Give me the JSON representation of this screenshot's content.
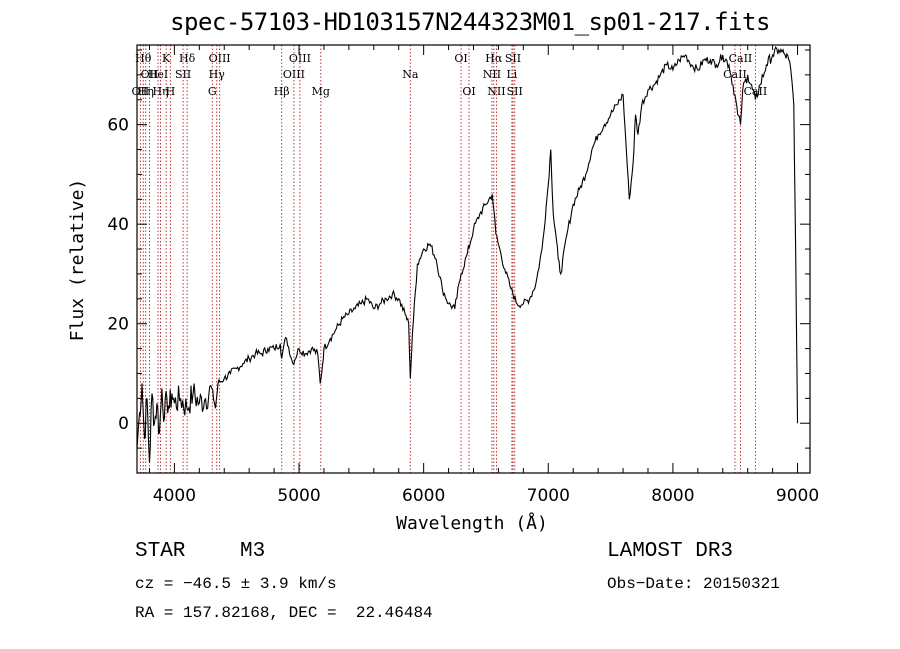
{
  "chart_data": {
    "type": "line",
    "title": "spec-57103-HD103157N244323M01_sp01-217.fits",
    "xlabel": "Wavelength (Å)",
    "ylabel": "Flux (relative)",
    "xlim": [
      3700,
      9100
    ],
    "ylim": [
      -10,
      76
    ],
    "xticks": [
      4000,
      5000,
      6000,
      7000,
      8000,
      9000
    ],
    "yticks": [
      0,
      20,
      40,
      60
    ],
    "series": [
      {
        "name": "flux",
        "x": [
          3700,
          3720,
          3740,
          3760,
          3780,
          3800,
          3820,
          3840,
          3860,
          3880,
          3900,
          3920,
          3940,
          3960,
          3980,
          4000,
          4050,
          4100,
          4150,
          4200,
          4250,
          4300,
          4330,
          4350,
          4400,
          4450,
          4500,
          4550,
          4600,
          4650,
          4700,
          4750,
          4800,
          4850,
          4861,
          4880,
          4900,
          4950,
          5000,
          5050,
          5100,
          5150,
          5170,
          5190,
          5200,
          5250,
          5300,
          5350,
          5400,
          5450,
          5500,
          5550,
          5600,
          5650,
          5700,
          5750,
          5800,
          5850,
          5880,
          5893,
          5910,
          5950,
          6000,
          6050,
          6100,
          6150,
          6200,
          6250,
          6300,
          6350,
          6400,
          6450,
          6500,
          6550,
          6563,
          6580,
          6600,
          6650,
          6700,
          6750,
          6800,
          6850,
          6900,
          6950,
          7000,
          7020,
          7040,
          7060,
          7080,
          7100,
          7150,
          7200,
          7250,
          7300,
          7350,
          7400,
          7450,
          7500,
          7550,
          7600,
          7650,
          7680,
          7700,
          7720,
          7750,
          7800,
          7850,
          7900,
          7950,
          8000,
          8050,
          8100,
          8150,
          8200,
          8250,
          8300,
          8350,
          8400,
          8450,
          8498,
          8520,
          8542,
          8560,
          8600,
          8662,
          8700,
          8750,
          8800,
          8850,
          8900,
          8930,
          8950,
          8970,
          8980,
          8990,
          9000
        ],
        "y": [
          -5,
          2,
          8,
          -3,
          5,
          -8,
          6,
          0,
          4,
          -2,
          7,
          1,
          5,
          3,
          6,
          4,
          5,
          3,
          6,
          4,
          5,
          7,
          3,
          8,
          9,
          10,
          11,
          12,
          13,
          14,
          14,
          15,
          15,
          16,
          13,
          16,
          17,
          12,
          15,
          14,
          15,
          14,
          8,
          12,
          15,
          17,
          19,
          21,
          22,
          23,
          24,
          25,
          23,
          24,
          25,
          26,
          25,
          22,
          20,
          9,
          18,
          32,
          35,
          36,
          33,
          27,
          24,
          23,
          30,
          34,
          39,
          42,
          44,
          46,
          43,
          38,
          36,
          31,
          27,
          24,
          24,
          25,
          28,
          35,
          48,
          55,
          42,
          38,
          33,
          30,
          38,
          44,
          47,
          50,
          55,
          58,
          60,
          62,
          64,
          66,
          45,
          52,
          62,
          58,
          64,
          67,
          68,
          70,
          72,
          71,
          73,
          74,
          72,
          71,
          73,
          73,
          72,
          74,
          72,
          66,
          62,
          60,
          67,
          70,
          65,
          68,
          72,
          74,
          75,
          74,
          73,
          70,
          64,
          45,
          22,
          0
        ]
      }
    ],
    "lines": [
      {
        "wave": 3727,
        "label": "OII",
        "row": 3
      },
      {
        "wave": 3750,
        "label": "Hθ",
        "row": 1
      },
      {
        "wave": 3770,
        "label": "Hη",
        "row": 3
      },
      {
        "wave": 3800,
        "label": "OII",
        "row": 2
      },
      {
        "wave": 3869,
        "label": "HeI",
        "row": 2
      },
      {
        "wave": 3889,
        "label": "Hη",
        "row": 3
      },
      {
        "wave": 3934,
        "label": "K",
        "row": 1
      },
      {
        "wave": 3968,
        "label": "H",
        "row": 3
      },
      {
        "wave": 4070,
        "label": "SII",
        "row": 2
      },
      {
        "wave": 4102,
        "label": "Hδ",
        "row": 1
      },
      {
        "wave": 4304,
        "label": "G",
        "row": 3
      },
      {
        "wave": 4340,
        "label": "Hγ",
        "row": 2
      },
      {
        "wave": 4363,
        "label": "OIII",
        "row": 1
      },
      {
        "wave": 4861,
        "label": "Hβ",
        "row": 3
      },
      {
        "wave": 4959,
        "label": "OIII",
        "row": 2
      },
      {
        "wave": 5007,
        "label": "OIII",
        "row": 1
      },
      {
        "wave": 5175,
        "label": "Mg",
        "row": 3
      },
      {
        "wave": 5893,
        "label": "Na",
        "row": 2
      },
      {
        "wave": 6300,
        "label": "OI",
        "row": 1
      },
      {
        "wave": 6364,
        "label": "OI",
        "row": 3
      },
      {
        "wave": 6548,
        "label": "NII",
        "row": 2
      },
      {
        "wave": 6563,
        "label": "Hα",
        "row": 1
      },
      {
        "wave": 6584,
        "label": "NII",
        "row": 3
      },
      {
        "wave": 6708,
        "label": "Li",
        "row": 2
      },
      {
        "wave": 6717,
        "label": "SII",
        "row": 1
      },
      {
        "wave": 6731,
        "label": "SII",
        "row": 3
      },
      {
        "wave": 8498,
        "label": "CaII",
        "row": 2
      },
      {
        "wave": 8542,
        "label": "CaII",
        "row": 1
      },
      {
        "wave": 8662,
        "label": "CaII",
        "row": 3
      }
    ]
  },
  "info": {
    "class": "STAR",
    "subclass": "M3",
    "survey": "LAMOST DR3",
    "cz": "cz = −46.5 ± 3.9 km/s",
    "obs_date": "Obs−Date: 20150321",
    "coords": "RA = 157.82168, DEC =  22.46484"
  },
  "colors": {
    "spectrum": "#000000",
    "line_marker": "#b22222",
    "axis": "#000000"
  }
}
